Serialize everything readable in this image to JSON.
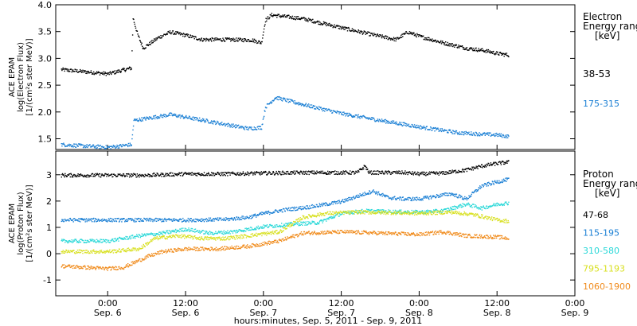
{
  "chart_data": [
    {
      "type": "scatter",
      "panel": "electron",
      "ylabel_lines": [
        "ACE EPAM",
        "log(Electron Flux)",
        "[1/(cm²s ster MeV)]"
      ],
      "ylim": [
        1.3,
        4.0
      ],
      "yticks": [
        "1.5",
        "2.0",
        "2.5",
        "3.0",
        "3.5",
        "4.0"
      ],
      "ytick_values": [
        1.5,
        2.0,
        2.5,
        3.0,
        3.5,
        4.0
      ],
      "legend_title_lines": [
        "Electron",
        "Energy range",
        "[keV]"
      ],
      "series": [
        {
          "name": "38-53",
          "color": "#000000",
          "points": [
            [
              -0.6,
              2.8
            ],
            [
              0.0,
              2.72
            ],
            [
              0.3,
              2.83
            ],
            [
              0.32,
              3.76
            ],
            [
              0.38,
              3.45
            ],
            [
              0.45,
              3.2
            ],
            [
              0.65,
              3.4
            ],
            [
              0.8,
              3.5
            ],
            [
              1.0,
              3.44
            ],
            [
              1.2,
              3.36
            ],
            [
              1.5,
              3.36
            ],
            [
              1.85,
              3.35
            ],
            [
              1.97,
              3.3
            ],
            [
              2.02,
              3.72
            ],
            [
              2.1,
              3.82
            ],
            [
              2.5,
              3.75
            ],
            [
              3.0,
              3.58
            ],
            [
              3.4,
              3.45
            ],
            [
              3.7,
              3.36
            ],
            [
              3.85,
              3.5
            ],
            [
              4.0,
              3.42
            ],
            [
              4.3,
              3.3
            ],
            [
              4.6,
              3.2
            ],
            [
              4.85,
              3.15
            ],
            [
              5.0,
              3.1
            ],
            [
              5.15,
              3.07
            ]
          ]
        },
        {
          "name": "175-315",
          "color": "#1a7fd4",
          "points": [
            [
              -0.6,
              1.4
            ],
            [
              0.0,
              1.35
            ],
            [
              0.3,
              1.4
            ],
            [
              0.33,
              1.85
            ],
            [
              0.8,
              1.96
            ],
            [
              1.2,
              1.86
            ],
            [
              1.5,
              1.78
            ],
            [
              1.8,
              1.7
            ],
            [
              1.97,
              1.72
            ],
            [
              2.02,
              2.1
            ],
            [
              2.15,
              2.28
            ],
            [
              2.5,
              2.15
            ],
            [
              3.0,
              1.98
            ],
            [
              3.5,
              1.85
            ],
            [
              4.0,
              1.73
            ],
            [
              4.5,
              1.62
            ],
            [
              5.0,
              1.58
            ],
            [
              5.15,
              1.55
            ]
          ]
        }
      ]
    },
    {
      "type": "scatter",
      "panel": "proton",
      "ylabel_lines": [
        "ACE EPAM",
        "log(Proton Flux)",
        "[1/(cm²s ster MeV)]"
      ],
      "ylim": [
        -1.6,
        3.9
      ],
      "yticks": [
        "-1",
        "0",
        "1",
        "2",
        "3"
      ],
      "ytick_values": [
        -1,
        0,
        1,
        2,
        3
      ],
      "legend_title_lines": [
        "Proton",
        "Energy range",
        "[keV]"
      ],
      "series": [
        {
          "name": "47-68",
          "color": "#000000",
          "points": [
            [
              -0.6,
              3.0
            ],
            [
              0.5,
              3.0
            ],
            [
              1.0,
              3.05
            ],
            [
              1.5,
              3.05
            ],
            [
              2.0,
              3.08
            ],
            [
              2.5,
              3.1
            ],
            [
              3.0,
              3.1
            ],
            [
              3.2,
              3.1
            ],
            [
              3.3,
              3.35
            ],
            [
              3.35,
              3.1
            ],
            [
              3.8,
              3.1
            ],
            [
              4.0,
              3.05
            ],
            [
              4.3,
              3.08
            ],
            [
              4.6,
              3.2
            ],
            [
              4.8,
              3.35
            ],
            [
              5.0,
              3.45
            ],
            [
              5.15,
              3.5
            ]
          ]
        },
        {
          "name": "115-195",
          "color": "#1a7fd4",
          "points": [
            [
              -0.6,
              1.3
            ],
            [
              0.5,
              1.3
            ],
            [
              1.0,
              1.3
            ],
            [
              1.5,
              1.32
            ],
            [
              1.8,
              1.4
            ],
            [
              2.0,
              1.55
            ],
            [
              2.3,
              1.7
            ],
            [
              2.6,
              1.8
            ],
            [
              3.0,
              2.0
            ],
            [
              3.2,
              2.2
            ],
            [
              3.4,
              2.4
            ],
            [
              3.6,
              2.15
            ],
            [
              3.8,
              2.1
            ],
            [
              4.0,
              2.1
            ],
            [
              4.2,
              2.2
            ],
            [
              4.4,
              2.3
            ],
            [
              4.6,
              2.1
            ],
            [
              4.8,
              2.6
            ],
            [
              5.0,
              2.75
            ],
            [
              5.15,
              2.85
            ]
          ]
        },
        {
          "name": "310-580",
          "color": "#2ad8d8",
          "points": [
            [
              -0.6,
              0.5
            ],
            [
              0.0,
              0.5
            ],
            [
              0.4,
              0.7
            ],
            [
              0.7,
              0.8
            ],
            [
              1.0,
              0.95
            ],
            [
              1.3,
              0.8
            ],
            [
              1.6,
              0.85
            ],
            [
              1.8,
              0.95
            ],
            [
              2.0,
              1.05
            ],
            [
              2.4,
              1.15
            ],
            [
              2.7,
              1.2
            ],
            [
              3.0,
              1.55
            ],
            [
              3.3,
              1.65
            ],
            [
              3.6,
              1.62
            ],
            [
              4.0,
              1.6
            ],
            [
              4.3,
              1.65
            ],
            [
              4.6,
              1.9
            ],
            [
              4.8,
              1.75
            ],
            [
              5.0,
              1.9
            ],
            [
              5.15,
              1.95
            ]
          ]
        },
        {
          "name": "795-1193",
          "color": "#d8e020",
          "points": [
            [
              -0.6,
              0.1
            ],
            [
              0.0,
              0.1
            ],
            [
              0.4,
              0.2
            ],
            [
              0.6,
              0.6
            ],
            [
              0.9,
              0.7
            ],
            [
              1.2,
              0.6
            ],
            [
              1.5,
              0.6
            ],
            [
              1.8,
              0.7
            ],
            [
              2.2,
              0.85
            ],
            [
              2.5,
              1.4
            ],
            [
              2.8,
              1.55
            ],
            [
              3.2,
              1.6
            ],
            [
              3.6,
              1.58
            ],
            [
              4.0,
              1.55
            ],
            [
              4.4,
              1.6
            ],
            [
              4.7,
              1.5
            ],
            [
              5.0,
              1.3
            ],
            [
              5.15,
              1.25
            ]
          ]
        },
        {
          "name": "1060-1900",
          "color": "#f08a1a",
          "points": [
            [
              -0.6,
              -0.45
            ],
            [
              0.0,
              -0.55
            ],
            [
              0.2,
              -0.5
            ],
            [
              0.5,
              -0.1
            ],
            [
              0.7,
              0.1
            ],
            [
              1.0,
              0.2
            ],
            [
              1.4,
              0.2
            ],
            [
              1.8,
              0.3
            ],
            [
              2.2,
              0.5
            ],
            [
              2.5,
              0.8
            ],
            [
              3.0,
              0.85
            ],
            [
              3.5,
              0.8
            ],
            [
              4.0,
              0.75
            ],
            [
              4.3,
              0.85
            ],
            [
              4.6,
              0.7
            ],
            [
              5.0,
              0.65
            ],
            [
              5.15,
              0.6
            ]
          ]
        }
      ]
    }
  ],
  "xaxis": {
    "xlim": [
      -0.667,
      6.0
    ],
    "ticks": [
      {
        "x": 0,
        "time": "0:00",
        "date": "Sep. 6"
      },
      {
        "x": 1,
        "time": "12:00",
        "date": "Sep. 6"
      },
      {
        "x": 2,
        "time": "0:00",
        "date": "Sep. 7"
      },
      {
        "x": 3,
        "time": "12:00",
        "date": "Sep. 7"
      },
      {
        "x": 4,
        "time": "0:00",
        "date": "Sep. 8"
      },
      {
        "x": 5,
        "time": "12:00",
        "date": "Sep. 8"
      },
      {
        "x": 6,
        "time": "0:00",
        "date": "Sep. 9"
      }
    ],
    "xlabel": "hours:minutes, Sep.  5, 2011 - Sep.  9, 2011"
  }
}
